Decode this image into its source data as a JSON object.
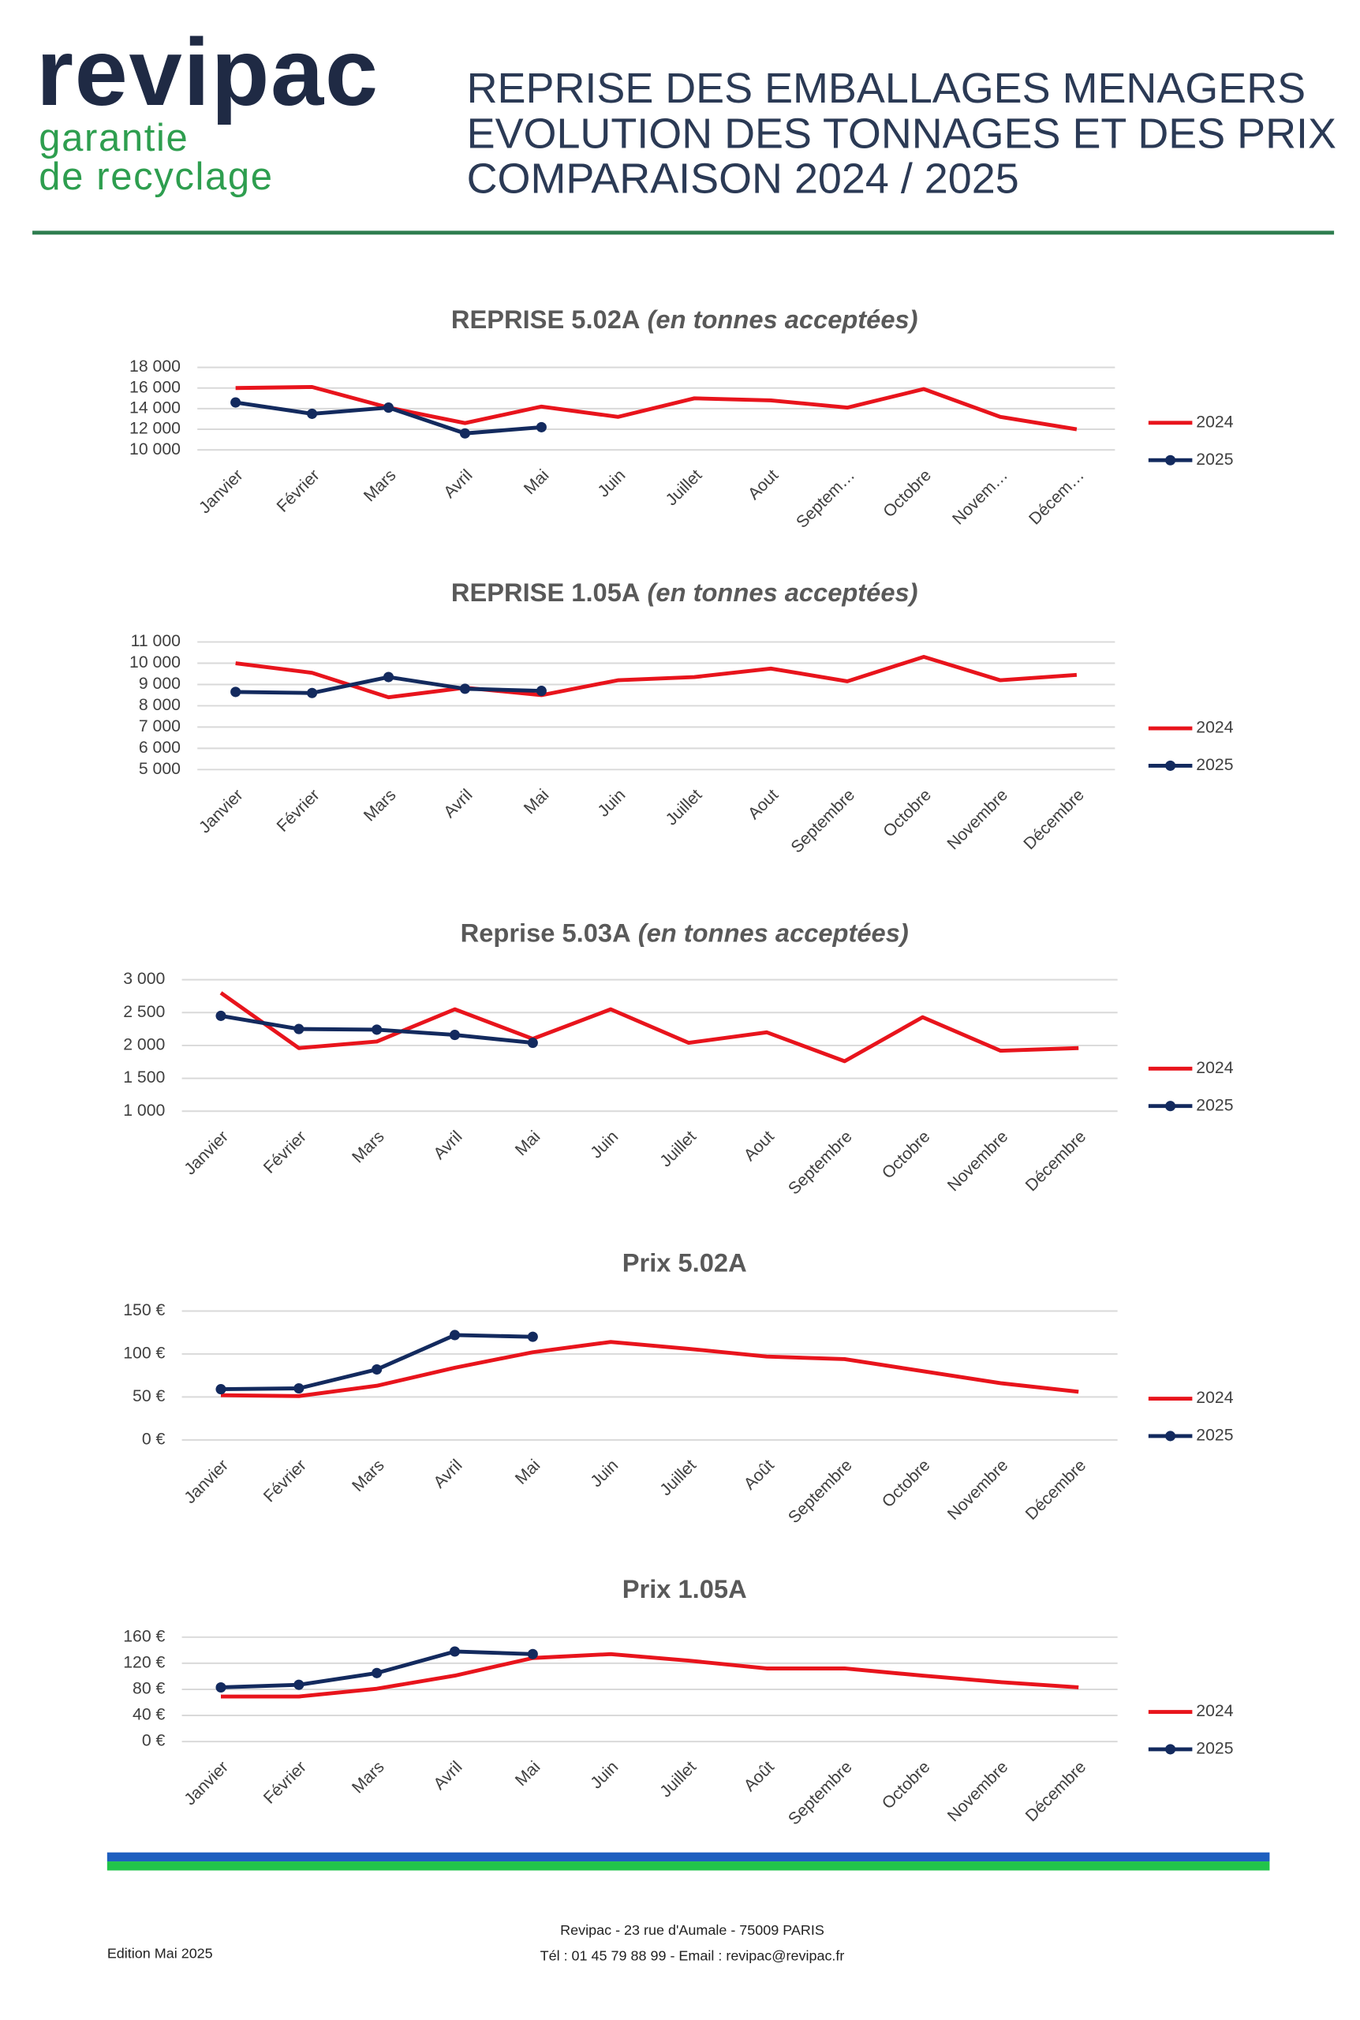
{
  "header": {
    "logo": "revipac",
    "tagline": [
      "garantie",
      "de recyclage"
    ],
    "title_lines": [
      "REPRISE DES EMBALLAGES MENAGERS",
      "EVOLUTION DES TONNAGES ET DES PRIX",
      "COMPARAISON 2024 / 2025"
    ]
  },
  "chart_data": [
    {
      "type": "line",
      "title": "REPRISE 5.02A",
      "subtitle": "(en tonnes acceptées)",
      "legend": "right",
      "grid": true,
      "categories": [
        "Janvier",
        "Février",
        "Mars",
        "Avril",
        "Mai",
        "Juin",
        "Juillet",
        "Aout",
        "Septem…",
        "Octobre",
        "Novem…",
        "Décem…"
      ],
      "ylim": [
        10000,
        18000
      ],
      "yticks": [
        {
          "value": 10000,
          "label": "10 000"
        },
        {
          "value": 12000,
          "label": "12 000"
        },
        {
          "value": 14000,
          "label": "14 000"
        },
        {
          "value": 16000,
          "label": "16 000"
        },
        {
          "value": 18000,
          "label": "18 000"
        }
      ],
      "series": [
        {
          "name": "2024",
          "color": "#e8141c",
          "values": [
            16000,
            16100,
            14100,
            12600,
            14200,
            13200,
            15000,
            14800,
            14100,
            15900,
            13200,
            12000
          ]
        },
        {
          "name": "2025",
          "color": "#132a5e",
          "marker": "circle",
          "values": [
            14600,
            13500,
            14100,
            11600,
            12200,
            null,
            null,
            null,
            null,
            null,
            null,
            null
          ]
        }
      ]
    },
    {
      "type": "line",
      "title": "REPRISE 1.05A",
      "subtitle": "(en tonnes acceptées)",
      "legend": "right",
      "grid": true,
      "categories": [
        "Janvier",
        "Février",
        "Mars",
        "Avril",
        "Mai",
        "Juin",
        "Juillet",
        "Aout",
        "Septembre",
        "Octobre",
        "Novembre",
        "Décembre"
      ],
      "ylim": [
        5000,
        11000
      ],
      "yticks": [
        {
          "value": 5000,
          "label": "5 000"
        },
        {
          "value": 6000,
          "label": "6 000"
        },
        {
          "value": 7000,
          "label": "7 000"
        },
        {
          "value": 8000,
          "label": "8 000"
        },
        {
          "value": 9000,
          "label": "9 000"
        },
        {
          "value": 10000,
          "label": "10 000"
        },
        {
          "value": 11000,
          "label": "11 000"
        }
      ],
      "series": [
        {
          "name": "2024",
          "color": "#e8141c",
          "values": [
            10000,
            9550,
            8400,
            8850,
            8500,
            9200,
            9350,
            9750,
            9150,
            10300,
            9200,
            9450
          ]
        },
        {
          "name": "2025",
          "color": "#132a5e",
          "marker": "circle",
          "values": [
            8650,
            8600,
            9350,
            8800,
            8700,
            null,
            null,
            null,
            null,
            null,
            null,
            null
          ]
        }
      ]
    },
    {
      "type": "line",
      "title": "Reprise 5.03A",
      "subtitle": "(en tonnes acceptées)",
      "legend": "right",
      "grid": true,
      "categories": [
        "Janvier",
        "Février",
        "Mars",
        "Avril",
        "Mai",
        "Juin",
        "Juillet",
        "Aout",
        "Septembre",
        "Octobre",
        "Novembre",
        "Décembre"
      ],
      "ylim": [
        1000,
        3000
      ],
      "yticks": [
        {
          "value": 1000,
          "label": "1 000"
        },
        {
          "value": 1500,
          "label": "1 500"
        },
        {
          "value": 2000,
          "label": "2 000"
        },
        {
          "value": 2500,
          "label": "2 500"
        },
        {
          "value": 3000,
          "label": "3 000"
        }
      ],
      "series": [
        {
          "name": "2024",
          "color": "#e8141c",
          "values": [
            2800,
            1960,
            2060,
            2550,
            2100,
            2550,
            2040,
            2200,
            1760,
            2430,
            1920,
            1960
          ]
        },
        {
          "name": "2025",
          "color": "#132a5e",
          "marker": "circle",
          "values": [
            2450,
            2250,
            2240,
            2160,
            2040,
            null,
            null,
            null,
            null,
            null,
            null,
            null
          ]
        }
      ]
    },
    {
      "type": "line",
      "title": "Prix 5.02A",
      "legend": "right",
      "grid": true,
      "categories": [
        "Janvier",
        "Février",
        "Mars",
        "Avril",
        "Mai",
        "Juin",
        "Juillet",
        "Août",
        "Septembre",
        "Octobre",
        "Novembre",
        "Décembre"
      ],
      "ylim": [
        0,
        150
      ],
      "yticks": [
        {
          "value": 0,
          "label": "0 €"
        },
        {
          "value": 50,
          "label": "50 €"
        },
        {
          "value": 100,
          "label": "100 €"
        },
        {
          "value": 150,
          "label": "150 €"
        }
      ],
      "series": [
        {
          "name": "2024",
          "color": "#e8141c",
          "values": [
            52,
            51,
            63,
            84,
            102,
            114,
            106,
            97,
            94,
            80,
            66,
            56
          ]
        },
        {
          "name": "2025",
          "color": "#132a5e",
          "marker": "circle",
          "values": [
            59,
            60,
            82,
            122,
            120,
            null,
            null,
            null,
            null,
            null,
            null,
            null
          ]
        }
      ]
    },
    {
      "type": "line",
      "title": "Prix 1.05A",
      "legend": "right",
      "grid": true,
      "categories": [
        "Janvier",
        "Février",
        "Mars",
        "Avril",
        "Mai",
        "Juin",
        "Juillet",
        "Août",
        "Septembre",
        "Octobre",
        "Novembre",
        "Décembre"
      ],
      "ylim": [
        0,
        160
      ],
      "yticks": [
        {
          "value": 0,
          "label": "0 €"
        },
        {
          "value": 40,
          "label": "40 €"
        },
        {
          "value": 80,
          "label": "80 €"
        },
        {
          "value": 120,
          "label": "120 €"
        },
        {
          "value": 160,
          "label": "160 €"
        }
      ],
      "series": [
        {
          "name": "2024",
          "color": "#e8141c",
          "values": [
            69,
            69,
            81,
            101,
            128,
            134,
            124,
            112,
            112,
            101,
            91,
            83
          ]
        },
        {
          "name": "2025",
          "color": "#132a5e",
          "marker": "circle",
          "values": [
            83,
            87,
            105,
            138,
            134,
            null,
            null,
            null,
            null,
            null,
            null,
            null
          ]
        }
      ]
    }
  ],
  "footer": {
    "edition": "Edition Mai 2025",
    "address": "Revipac - 23 rue d'Aumale - 75009 PARIS",
    "contact": "Tél : 01 45 79 88 99 - Email : revipac@revipac.fr"
  }
}
